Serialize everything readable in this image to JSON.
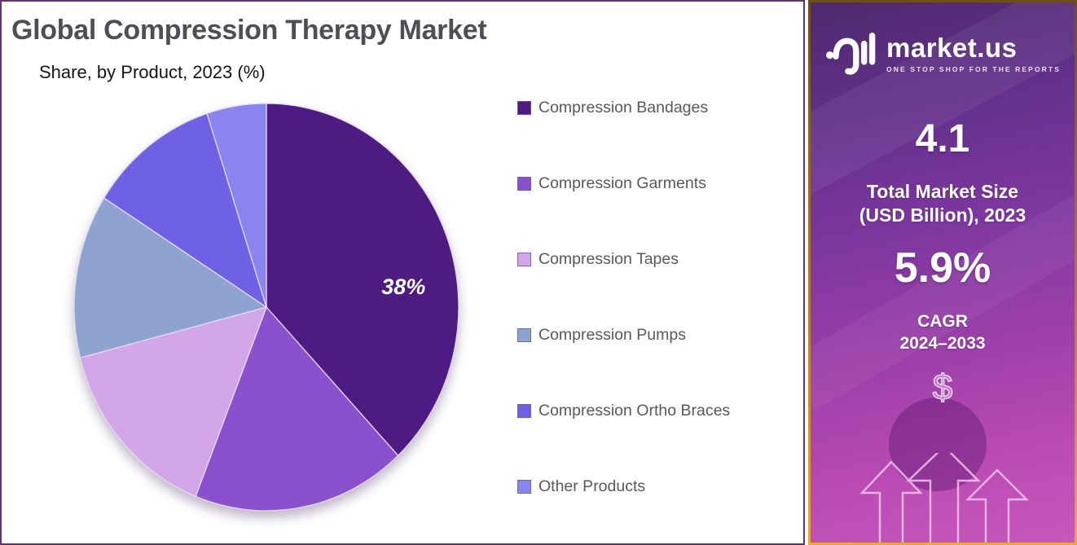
{
  "header": {
    "title": "Global Compression Therapy Market",
    "subtitle": "Share, by Product, 2023 (%)"
  },
  "chart_data": {
    "type": "pie",
    "title": "Global Compression Therapy Market Share, by Product, 2023 (%)",
    "direction": "clockwise",
    "start_angle_deg": 0,
    "unit": "%",
    "categories": [
      "Compression Bandages",
      "Compression Garments",
      "Compression Tapes",
      "Compression Pumps",
      "Compression Ortho Braces",
      "Other Products"
    ],
    "values": [
      38,
      18,
      15,
      13,
      11,
      5
    ],
    "colors": [
      "#4e1b82",
      "#8b50ce",
      "#d3a6e9",
      "#8fa3d0",
      "#6e61e6",
      "#8a85ee"
    ],
    "data_labels": [
      "38%",
      "",
      "",
      "",
      "",
      ""
    ],
    "legend_position": "right"
  },
  "sidebar": {
    "logo": {
      "brand": "market.us",
      "tagline": "ONE STOP SHOP FOR THE REPORTS"
    },
    "market_size": {
      "value": "4.1",
      "label_line1": "Total Market Size",
      "label_line2": "(USD Billion), 2023"
    },
    "cagr": {
      "value": "5.9%",
      "label_line1": "CAGR",
      "label_line2": "2024–2033"
    },
    "dollar_symbol": "$"
  },
  "colors": {
    "chart_border": "#6a2d7a",
    "sidebar_border_gold": "#c08a28",
    "title_gray": "#514d57",
    "legend_text_gray": "#595959",
    "label_white": "#ffffff"
  }
}
